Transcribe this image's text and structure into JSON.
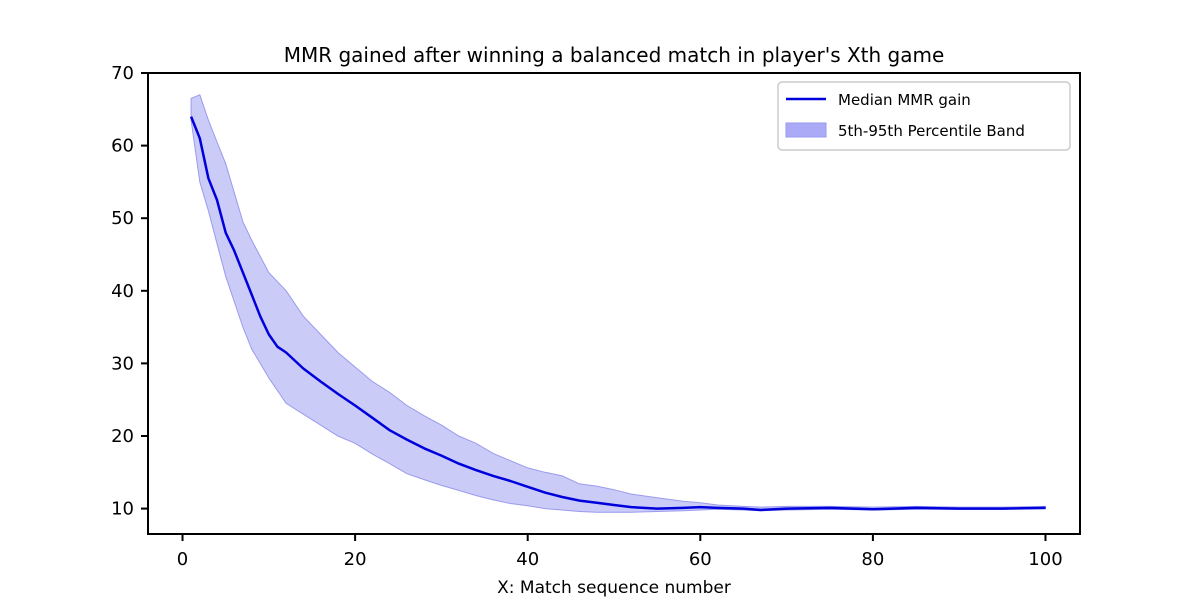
{
  "chart_data": {
    "type": "line",
    "title": "MMR gained after winning a balanced match in player's Xth game",
    "xlabel": "X: Match sequence number",
    "ylabel": "",
    "xlim": [
      -4,
      104
    ],
    "ylim": [
      6.5,
      70
    ],
    "xticks": [
      0,
      20,
      40,
      60,
      80,
      100
    ],
    "yticks": [
      10,
      20,
      30,
      40,
      50,
      60,
      70
    ],
    "grid": false,
    "legend_position": "top-right",
    "colors": {
      "median": "#0000dd",
      "band_fill": "#c8c8f8",
      "band_edge": "#9a9aee"
    },
    "series": [
      {
        "name": "Median MMR gain",
        "kind": "line",
        "x": [
          1,
          2,
          3,
          4,
          5,
          6,
          7,
          8,
          9,
          10,
          11,
          12,
          14,
          16,
          18,
          20,
          22,
          24,
          26,
          28,
          30,
          32,
          34,
          36,
          38,
          40,
          42,
          44,
          46,
          48,
          50,
          52,
          55,
          58,
          60,
          62,
          65,
          67,
          70,
          75,
          80,
          85,
          90,
          95,
          100
        ],
        "y": [
          64,
          61,
          55.5,
          52.5,
          48,
          45.5,
          42.5,
          39.5,
          36.5,
          34,
          32.3,
          31.5,
          29.3,
          27.5,
          25.8,
          24.2,
          22.5,
          20.8,
          19.5,
          18.3,
          17.3,
          16.2,
          15.3,
          14.5,
          13.8,
          13,
          12.2,
          11.6,
          11.1,
          10.8,
          10.5,
          10.2,
          10,
          10.1,
          10.2,
          10.1,
          10,
          9.8,
          10,
          10.1,
          9.9,
          10.1,
          10,
          10,
          10.1
        ]
      },
      {
        "name": "5th-95th Percentile Band",
        "kind": "band",
        "x": [
          1,
          2,
          3,
          4,
          5,
          6,
          7,
          8,
          10,
          12,
          14,
          16,
          18,
          20,
          22,
          24,
          26,
          28,
          30,
          32,
          34,
          36,
          38,
          40,
          42,
          44,
          46,
          48,
          50,
          52,
          55,
          58,
          60,
          62,
          65,
          67,
          70,
          75,
          80,
          85,
          90,
          95,
          100
        ],
        "lower": [
          63.5,
          55,
          51,
          46.5,
          42,
          38.5,
          35,
          32,
          28,
          24.5,
          23,
          21.5,
          20,
          19,
          17.5,
          16.2,
          14.8,
          14,
          13.2,
          12.5,
          11.8,
          11.2,
          10.7,
          10.4,
          10,
          9.8,
          9.6,
          9.5,
          9.5,
          9.5,
          9.6,
          9.7,
          9.8,
          9.9,
          9.8,
          9.7,
          9.8,
          9.9,
          9.8,
          9.9,
          9.9,
          9.9,
          10
        ],
        "upper": [
          66.5,
          67,
          63.5,
          60.5,
          57.5,
          53.5,
          49.5,
          47,
          42.5,
          40,
          36.5,
          34,
          31.5,
          29.5,
          27.5,
          26,
          24.2,
          22.8,
          21.5,
          20,
          19,
          17.6,
          16.6,
          15.6,
          15,
          14.5,
          13.4,
          13.1,
          12.6,
          12,
          11.5,
          11,
          10.8,
          10.5,
          10.3,
          10.2,
          10.3,
          10.3,
          10.2,
          10.3,
          10.2,
          10.2,
          10.3
        ]
      }
    ]
  }
}
